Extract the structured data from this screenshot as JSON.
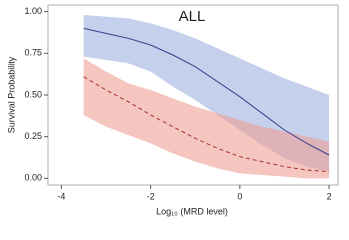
{
  "chart_data": {
    "type": "line",
    "title": "ALL",
    "x_label": "Log₁₀ (MRD level)",
    "y_label": "Survival Probability",
    "x": [
      -3.5,
      -3,
      -2.5,
      -2,
      -1.5,
      -1,
      -0.5,
      0,
      0.5,
      1,
      1.5,
      2
    ],
    "series": [
      {
        "color": "#3a3f8c",
        "band_color": "#9fb2e0",
        "dash": false,
        "values": [
          0.9,
          0.87,
          0.84,
          0.8,
          0.74,
          0.67,
          0.58,
          0.49,
          0.39,
          0.29,
          0.21,
          0.14
        ],
        "upper": [
          0.98,
          0.97,
          0.96,
          0.93,
          0.89,
          0.84,
          0.78,
          0.72,
          0.66,
          0.6,
          0.55,
          0.5
        ],
        "lower": [
          0.73,
          0.71,
          0.69,
          0.64,
          0.55,
          0.47,
          0.38,
          0.29,
          0.2,
          0.12,
          0.07,
          0.04
        ]
      },
      {
        "color": "#a8322d",
        "band_color": "#ef9f96",
        "dash": true,
        "values": [
          0.61,
          0.53,
          0.46,
          0.38,
          0.31,
          0.24,
          0.18,
          0.13,
          0.1,
          0.07,
          0.05,
          0.04
        ],
        "upper": [
          0.72,
          0.64,
          0.57,
          0.53,
          0.48,
          0.43,
          0.39,
          0.35,
          0.31,
          0.28,
          0.25,
          0.22
        ],
        "lower": [
          0.38,
          0.31,
          0.26,
          0.21,
          0.15,
          0.1,
          0.06,
          0.03,
          0.02,
          0.01,
          0.0,
          0.0
        ]
      }
    ],
    "xlim": [
      -4.3,
      2.2
    ],
    "ylim": [
      -0.04,
      1.04
    ],
    "xticks": [
      -4,
      -2,
      0,
      2
    ],
    "yticks": [
      {
        "value": 0,
        "label": "0.00"
      },
      {
        "value": 0.25,
        "label": "0.25"
      },
      {
        "value": 0.5,
        "label": "0.50"
      },
      {
        "value": 0.75,
        "label": "0.75"
      },
      {
        "value": 1,
        "label": "1.00"
      }
    ]
  }
}
